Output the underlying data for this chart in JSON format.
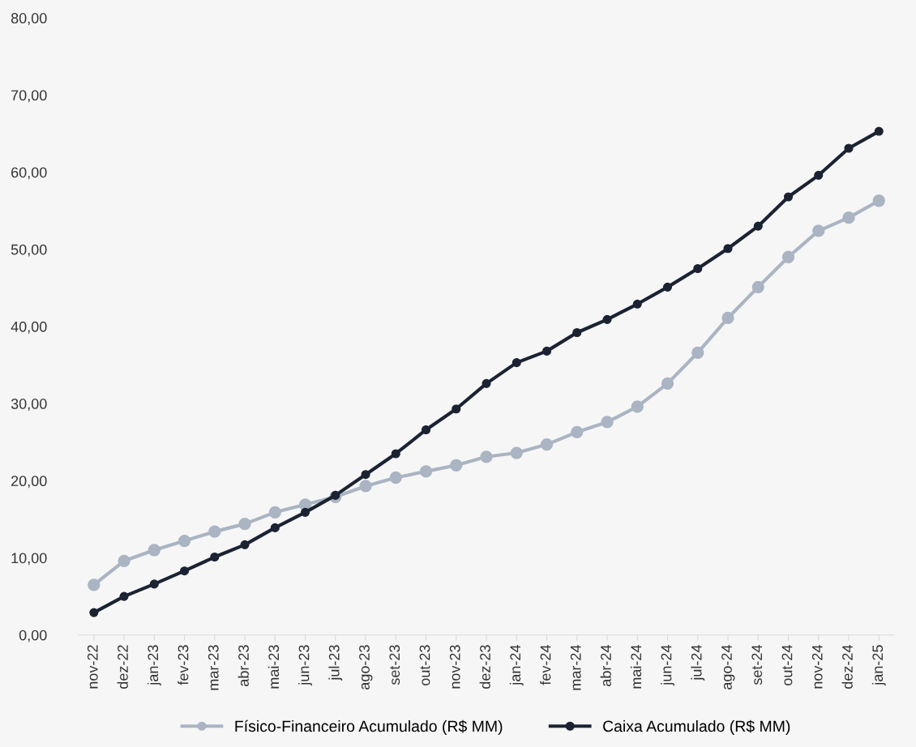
{
  "chart_data": {
    "type": "line",
    "categories": [
      "nov-22",
      "dez-22",
      "jan-23",
      "fev-23",
      "mar-23",
      "abr-23",
      "mai-23",
      "jun-23",
      "jul-23",
      "ago-23",
      "set-23",
      "out-23",
      "nov-23",
      "dez-23",
      "jan-24",
      "fev-24",
      "mar-24",
      "abr-24",
      "mai-24",
      "jun-24",
      "jul-24",
      "ago-24",
      "set-24",
      "out-24",
      "nov-24",
      "dez-24",
      "jan-25"
    ],
    "series": [
      {
        "name": "Físico-Financeiro Acumulado (R$ MM)",
        "color": "#aab4c3",
        "values": [
          6.5,
          9.6,
          11.0,
          12.2,
          13.4,
          14.4,
          15.9,
          16.9,
          17.9,
          19.3,
          20.4,
          21.2,
          22.0,
          23.1,
          23.6,
          24.7,
          26.3,
          27.6,
          29.6,
          32.6,
          36.6,
          41.1,
          45.1,
          49.0,
          52.4,
          54.1,
          56.3
        ]
      },
      {
        "name": "Caixa Acumulado (R$ MM)",
        "color": "#1b2333",
        "values": [
          2.9,
          5.0,
          6.6,
          8.3,
          10.1,
          11.7,
          13.9,
          15.9,
          18.1,
          20.8,
          23.5,
          26.6,
          29.3,
          32.6,
          35.3,
          36.8,
          39.2,
          40.9,
          42.9,
          45.1,
          47.5,
          50.1,
          53.0,
          56.8,
          59.6,
          63.1,
          65.3
        ]
      }
    ],
    "ylim": [
      0,
      80
    ],
    "yticks": [
      {
        "value": 0,
        "label": "0,00"
      },
      {
        "value": 10,
        "label": "10,00"
      },
      {
        "value": 20,
        "label": "20,00"
      },
      {
        "value": 30,
        "label": "30,00"
      },
      {
        "value": 40,
        "label": "40,00"
      },
      {
        "value": 50,
        "label": "50,00"
      },
      {
        "value": 60,
        "label": "60,00"
      },
      {
        "value": 70,
        "label": "70,00"
      },
      {
        "value": 80,
        "label": "80,00"
      }
    ],
    "grid": false,
    "legend": "bottom",
    "marker": "circle",
    "line_style": "solid"
  }
}
